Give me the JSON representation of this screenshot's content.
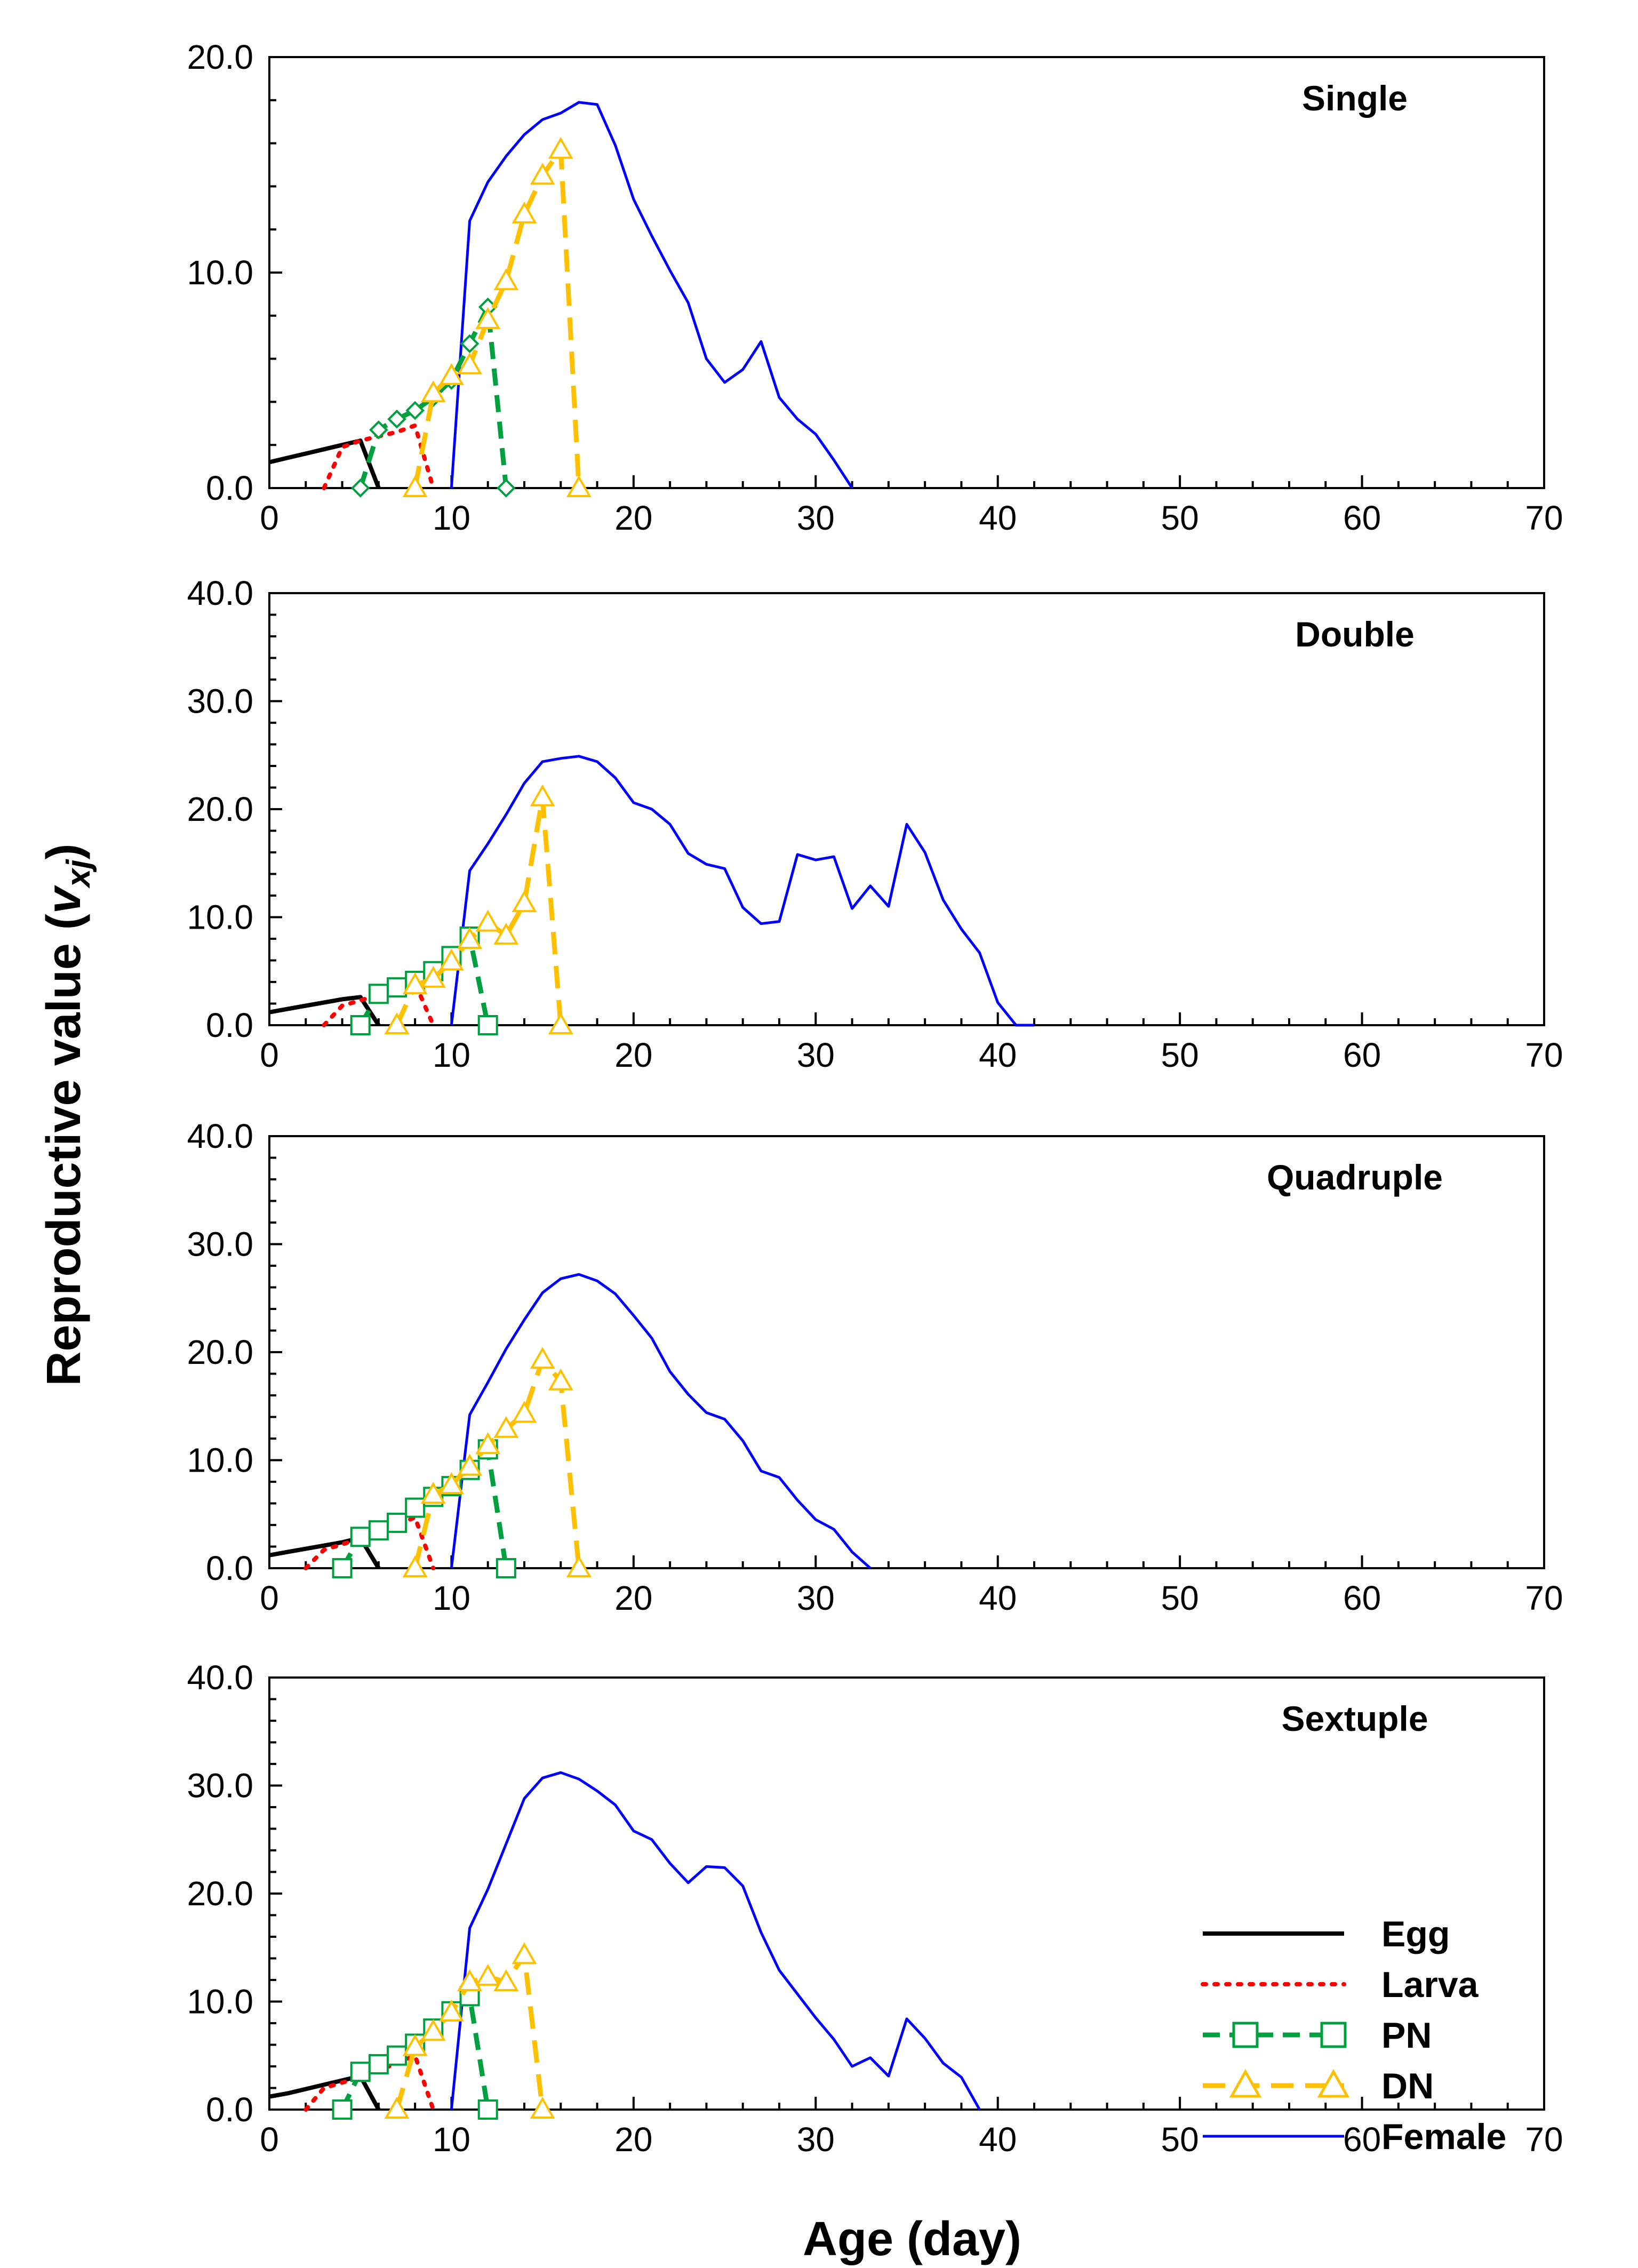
{
  "figure": {
    "ylabel_main": "Reproductive  value  (",
    "ylabel_v": "v",
    "ylabel_sub": "xj",
    "ylabel_close": ")",
    "xlabel": "Age (day)",
    "legend_position": "right, inside bottom panel"
  },
  "colors": {
    "Egg": "#000000",
    "Larva": "#ff0000",
    "PN": "#00a040",
    "DN": "#ffc000",
    "Female": "#0000ff",
    "PN_marker_square": "#00a040"
  },
  "legend": [
    {
      "name": "Egg",
      "marker": "none",
      "dash": "solid"
    },
    {
      "name": "Larva",
      "marker": "none",
      "dash": "dotted"
    },
    {
      "name": "PN",
      "marker": "square",
      "dash": "dashed"
    },
    {
      "name": "DN",
      "marker": "triangle",
      "dash": "dashed"
    },
    {
      "name": "Female",
      "marker": "none",
      "dash": "solid-thin"
    }
  ],
  "chart_data": [
    {
      "type": "line",
      "title": "Single",
      "xlim": [
        0,
        70
      ],
      "ylim": [
        0,
        20
      ],
      "xticks": [
        "0",
        "10",
        "20",
        "30",
        "40",
        "50",
        "60",
        "70"
      ],
      "yticks": [
        "0.0",
        "10.0",
        "20.0"
      ],
      "pn_marker": "diamond",
      "series": [
        {
          "name": "Egg",
          "x": [
            0,
            1,
            2,
            3,
            4,
            5,
            6
          ],
          "y": [
            1.2,
            1.4,
            1.6,
            1.8,
            2.0,
            2.2,
            0
          ]
        },
        {
          "name": "Larva",
          "x": [
            3,
            4,
            5,
            6,
            7,
            8,
            9
          ],
          "y": [
            0,
            1.9,
            2.2,
            2.4,
            2.6,
            2.9,
            0
          ]
        },
        {
          "name": "PN",
          "x": [
            5,
            6,
            7,
            8,
            9,
            10,
            11,
            12,
            13
          ],
          "y": [
            0,
            2.7,
            3.2,
            3.6,
            4.2,
            5.0,
            6.7,
            8.4,
            0
          ]
        },
        {
          "name": "DN",
          "x": [
            8,
            9,
            10,
            11,
            12,
            13,
            14,
            15,
            16,
            17
          ],
          "y": [
            0,
            4.4,
            5.2,
            5.7,
            7.8,
            9.6,
            12.7,
            14.5,
            15.7,
            0
          ]
        },
        {
          "name": "Female",
          "x": [
            10,
            11,
            12,
            13,
            14,
            15,
            16,
            17,
            18,
            19,
            20,
            21,
            22,
            23,
            24,
            25,
            26,
            27,
            28,
            29,
            30,
            31,
            32
          ],
          "y": [
            0,
            12.4,
            14.2,
            15.4,
            16.4,
            17.1,
            17.4,
            17.9,
            17.8,
            15.9,
            13.4,
            11.7,
            10.1,
            8.6,
            6.0,
            4.9,
            5.5,
            6.8,
            4.2,
            3.2,
            2.5,
            1.3,
            0
          ]
        }
      ]
    },
    {
      "type": "line",
      "title": "Double",
      "xlim": [
        0,
        70
      ],
      "ylim": [
        0,
        40
      ],
      "xticks": [
        "0",
        "10",
        "20",
        "30",
        "40",
        "50",
        "60",
        "70"
      ],
      "yticks": [
        "0.0",
        "10.0",
        "20.0",
        "30.0",
        "40.0"
      ],
      "pn_marker": "square",
      "series": [
        {
          "name": "Egg",
          "x": [
            0,
            1,
            2,
            3,
            4,
            5,
            6
          ],
          "y": [
            1.2,
            1.5,
            1.8,
            2.1,
            2.4,
            2.6,
            0
          ]
        },
        {
          "name": "Larva",
          "x": [
            3,
            4,
            5,
            6,
            7,
            8,
            9
          ],
          "y": [
            0,
            1.8,
            2.3,
            2.8,
            3.3,
            3.9,
            0
          ]
        },
        {
          "name": "PN",
          "x": [
            5,
            6,
            7,
            8,
            9,
            10,
            11,
            12
          ],
          "y": [
            0,
            2.9,
            3.5,
            4.1,
            5.0,
            6.4,
            8.2,
            0
          ]
        },
        {
          "name": "DN",
          "x": [
            7,
            8,
            9,
            10,
            11,
            12,
            13,
            14,
            15,
            16
          ],
          "y": [
            0,
            3.7,
            4.3,
            5.9,
            7.9,
            9.5,
            8.3,
            11.3,
            21.1,
            0
          ]
        },
        {
          "name": "Female",
          "x": [
            10,
            11,
            12,
            13,
            14,
            15,
            16,
            17,
            18,
            19,
            20,
            21,
            22,
            23,
            24,
            25,
            26,
            27,
            28,
            29,
            30,
            31,
            32,
            33,
            34,
            35,
            36,
            37,
            38,
            39,
            40,
            41,
            42
          ],
          "y": [
            0,
            14.3,
            16.8,
            19.5,
            22.4,
            24.4,
            24.7,
            24.9,
            24.4,
            22.9,
            20.6,
            20.0,
            18.6,
            15.9,
            14.9,
            14.5,
            10.9,
            9.4,
            9.6,
            15.8,
            15.3,
            15.6,
            10.8,
            12.9,
            11.0,
            18.6,
            16.0,
            11.6,
            8.9,
            6.7,
            2.1,
            0,
            0
          ]
        }
      ]
    },
    {
      "type": "line",
      "title": "Quadruple",
      "xlim": [
        0,
        70
      ],
      "ylim": [
        0,
        40
      ],
      "xticks": [
        "0",
        "10",
        "20",
        "30",
        "40",
        "50",
        "60",
        "70"
      ],
      "yticks": [
        "0.0",
        "10.0",
        "20.0",
        "30.0",
        "40.0"
      ],
      "pn_marker": "square",
      "series": [
        {
          "name": "Egg",
          "x": [
            0,
            1,
            2,
            3,
            4,
            5,
            6
          ],
          "y": [
            1.2,
            1.5,
            1.8,
            2.1,
            2.4,
            2.8,
            0
          ]
        },
        {
          "name": "Larva",
          "x": [
            2,
            3,
            4,
            5,
            6,
            7,
            8,
            9
          ],
          "y": [
            0,
            1.7,
            2.2,
            2.8,
            3.4,
            4.0,
            4.7,
            0
          ]
        },
        {
          "name": "PN",
          "x": [
            4,
            5,
            6,
            7,
            8,
            9,
            10,
            11,
            12,
            13
          ],
          "y": [
            0,
            2.9,
            3.5,
            4.2,
            5.6,
            6.6,
            7.6,
            9.1,
            11.0,
            0
          ]
        },
        {
          "name": "DN",
          "x": [
            8,
            9,
            10,
            11,
            12,
            13,
            14,
            15,
            16,
            17
          ],
          "y": [
            0,
            6.8,
            7.7,
            9.4,
            11.4,
            12.9,
            14.3,
            19.3,
            17.3,
            0
          ]
        },
        {
          "name": "Female",
          "x": [
            10,
            11,
            12,
            13,
            14,
            15,
            16,
            17,
            18,
            19,
            20,
            21,
            22,
            23,
            24,
            25,
            26,
            27,
            28,
            29,
            30,
            31,
            32,
            33
          ],
          "y": [
            0,
            14.2,
            17.2,
            20.3,
            23.0,
            25.5,
            26.8,
            27.2,
            26.6,
            25.4,
            23.4,
            21.3,
            18.2,
            16.1,
            14.4,
            13.8,
            11.8,
            9.0,
            8.4,
            6.3,
            4.5,
            3.6,
            1.5,
            0
          ]
        }
      ]
    },
    {
      "type": "line",
      "title": "Sextuple",
      "xlim": [
        0,
        70
      ],
      "ylim": [
        0,
        40
      ],
      "xticks": [
        "0",
        "10",
        "20",
        "30",
        "40",
        "50",
        "60",
        "70"
      ],
      "yticks": [
        "0.0",
        "10.0",
        "20.0",
        "30.0",
        "40.0"
      ],
      "pn_marker": "square",
      "series": [
        {
          "name": "Egg",
          "x": [
            0,
            1,
            2,
            3,
            4,
            5,
            6
          ],
          "y": [
            1.2,
            1.5,
            1.9,
            2.3,
            2.7,
            3.1,
            0
          ]
        },
        {
          "name": "Larva",
          "x": [
            2,
            3,
            4,
            5,
            6,
            7,
            8,
            9
          ],
          "y": [
            0,
            2.0,
            2.5,
            3.0,
            3.6,
            4.3,
            5.0,
            0
          ]
        },
        {
          "name": "PN",
          "x": [
            4,
            5,
            6,
            7,
            8,
            9,
            10,
            11,
            12
          ],
          "y": [
            0,
            3.5,
            4.2,
            5.0,
            6.1,
            7.5,
            9.1,
            10.5,
            0
          ]
        },
        {
          "name": "DN",
          "x": [
            7,
            8,
            9,
            10,
            11,
            12,
            13,
            14,
            15
          ],
          "y": [
            0,
            5.8,
            7.2,
            9.0,
            11.8,
            12.3,
            11.8,
            14.3,
            0
          ]
        },
        {
          "name": "Female",
          "x": [
            10,
            11,
            12,
            13,
            14,
            15,
            16,
            17,
            18,
            19,
            20,
            21,
            22,
            23,
            24,
            25,
            26,
            27,
            28,
            29,
            30,
            31,
            32,
            33,
            34,
            35,
            36,
            37,
            38,
            39
          ],
          "y": [
            0,
            16.8,
            20.4,
            24.6,
            28.8,
            30.7,
            31.2,
            30.6,
            29.5,
            28.2,
            25.8,
            25.0,
            22.8,
            21.0,
            22.5,
            22.4,
            20.7,
            16.4,
            12.9,
            10.7,
            8.5,
            6.5,
            4.0,
            4.8,
            3.1,
            8.4,
            6.6,
            4.3,
            3.0,
            0
          ]
        }
      ]
    }
  ]
}
